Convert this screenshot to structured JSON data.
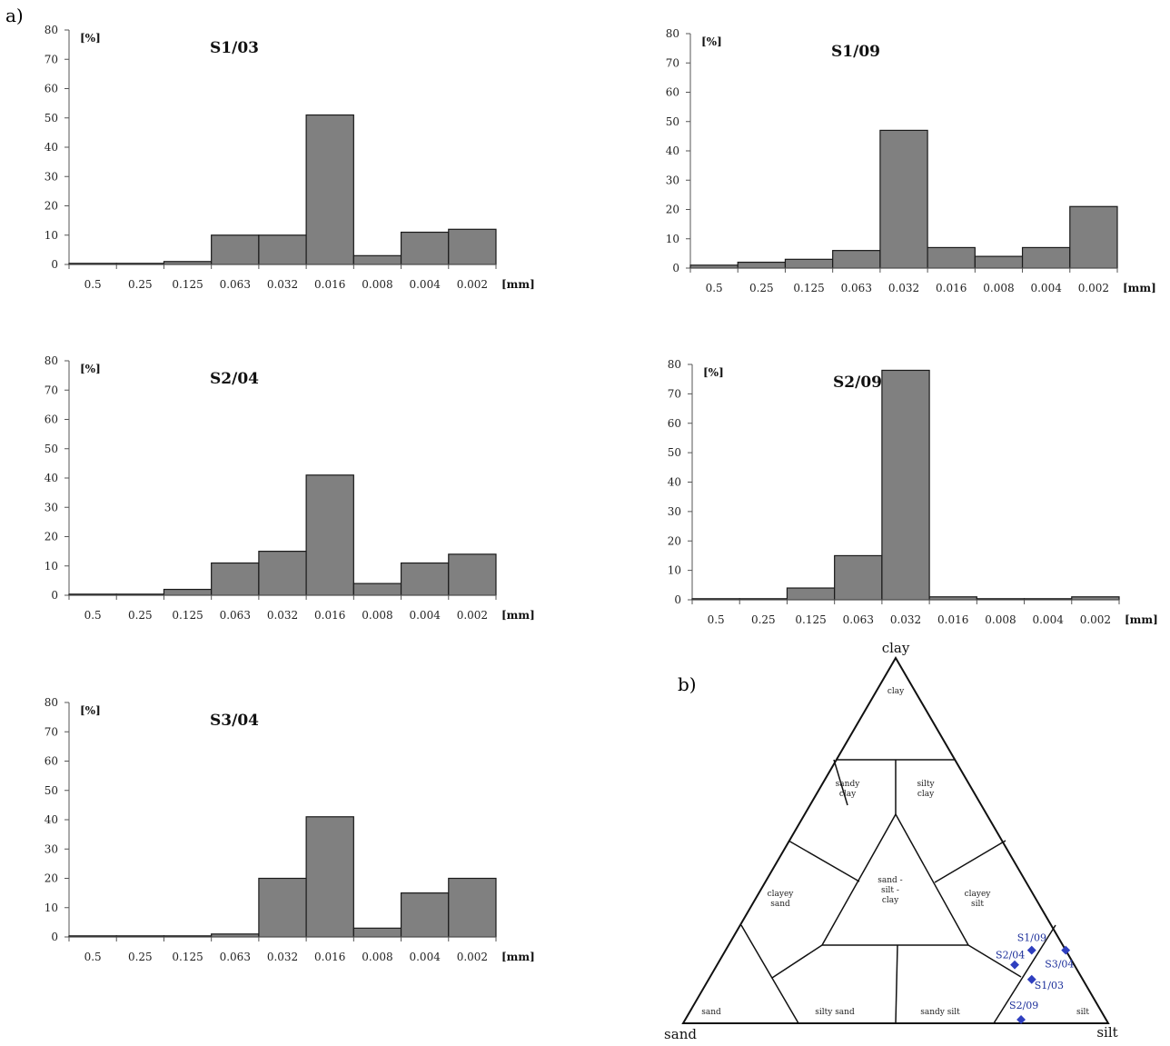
{
  "panel_labels": {
    "a": "a)",
    "b": "b)"
  },
  "chart_data": [
    {
      "type": "bar",
      "title": "S1/03",
      "ylabel": "[%]",
      "xunit": "[mm]",
      "categories": [
        "0.5",
        "0.25",
        "0.125",
        "0.063",
        "0.032",
        "0.016",
        "0.008",
        "0.004",
        "0.002"
      ],
      "values": [
        0,
        0,
        1,
        10,
        10,
        51,
        3,
        11,
        12
      ],
      "ylim": [
        0,
        80
      ],
      "yticks": [
        "0",
        "10",
        "20",
        "30",
        "40",
        "50",
        "60",
        "70",
        "80"
      ],
      "bar_color": "#808080"
    },
    {
      "type": "bar",
      "title": "S1/09",
      "ylabel": "[%]",
      "xunit": "[mm]",
      "categories": [
        "0.5",
        "0.25",
        "0.125",
        "0.063",
        "0.032",
        "0.016",
        "0.008",
        "0.004",
        "0.002"
      ],
      "values": [
        1,
        2,
        3,
        6,
        47,
        7,
        4,
        7,
        21
      ],
      "ylim": [
        0,
        80
      ],
      "yticks": [
        "0",
        "10",
        "20",
        "30",
        "40",
        "50",
        "60",
        "70",
        "80"
      ],
      "bar_color": "#808080"
    },
    {
      "type": "bar",
      "title": "S2/04",
      "ylabel": "[%]",
      "xunit": "[mm]",
      "categories": [
        "0.5",
        "0.25",
        "0.125",
        "0.063",
        "0.032",
        "0.016",
        "0.008",
        "0.004",
        "0.002"
      ],
      "values": [
        0,
        0,
        2,
        11,
        15,
        41,
        4,
        11,
        14
      ],
      "ylim": [
        0,
        80
      ],
      "yticks": [
        "0",
        "10",
        "20",
        "30",
        "40",
        "50",
        "60",
        "70",
        "80"
      ],
      "bar_color": "#808080"
    },
    {
      "type": "bar",
      "title": "S2/09",
      "ylabel": "[%]",
      "xunit": "[mm]",
      "categories": [
        "0.5",
        "0.25",
        "0.125",
        "0.063",
        "0.032",
        "0.016",
        "0.008",
        "0.004",
        "0.002"
      ],
      "values": [
        0,
        0,
        4,
        15,
        78,
        1,
        0,
        0,
        1
      ],
      "ylim": [
        0,
        80
      ],
      "yticks": [
        "0",
        "10",
        "20",
        "30",
        "40",
        "50",
        "60",
        "70",
        "80"
      ],
      "bar_color": "#808080"
    },
    {
      "type": "bar",
      "title": "S3/04",
      "ylabel": "[%]",
      "xunit": "[mm]",
      "categories": [
        "0.5",
        "0.25",
        "0.125",
        "0.063",
        "0.032",
        "0.016",
        "0.008",
        "0.004",
        "0.002"
      ],
      "values": [
        0,
        0,
        0,
        1,
        20,
        41,
        3,
        15,
        20
      ],
      "ylim": [
        0,
        80
      ],
      "yticks": [
        "0",
        "10",
        "20",
        "30",
        "40",
        "50",
        "60",
        "70",
        "80"
      ],
      "bar_color": "#808080"
    },
    {
      "type": "scatter",
      "subtype": "ternary",
      "vertices": {
        "top": "clay",
        "left": "sand",
        "right": "silt"
      },
      "regions": [
        {
          "id": "clay",
          "lines": [
            "clay"
          ]
        },
        {
          "id": "sandy-clay",
          "lines": [
            "sandy",
            "clay"
          ]
        },
        {
          "id": "silty-clay",
          "lines": [
            "silty",
            "clay"
          ]
        },
        {
          "id": "clayey-sand",
          "lines": [
            "clayey",
            "sand"
          ]
        },
        {
          "id": "sand-silt-clay",
          "lines": [
            "sand -",
            "silt -",
            "clay"
          ]
        },
        {
          "id": "clayey-silt",
          "lines": [
            "clayey",
            "silt"
          ]
        },
        {
          "id": "sand",
          "lines": [
            "sand"
          ]
        },
        {
          "id": "silty-sand",
          "lines": [
            "silty sand"
          ]
        },
        {
          "id": "sandy-silt",
          "lines": [
            "sandy silt"
          ]
        },
        {
          "id": "silt",
          "lines": [
            "silt"
          ]
        }
      ],
      "point_color": "#2f3fbf",
      "points": [
        {
          "label": "S1/09",
          "clay": 20,
          "silt": 72,
          "sand": 8
        },
        {
          "label": "S3/04",
          "clay": 20,
          "silt": 80,
          "sand": 0
        },
        {
          "label": "S2/04",
          "clay": 16,
          "silt": 70,
          "sand": 14
        },
        {
          "label": "S1/03",
          "clay": 12,
          "silt": 76,
          "sand": 12
        },
        {
          "label": "S2/09",
          "clay": 1,
          "silt": 79,
          "sand": 20
        }
      ]
    }
  ]
}
